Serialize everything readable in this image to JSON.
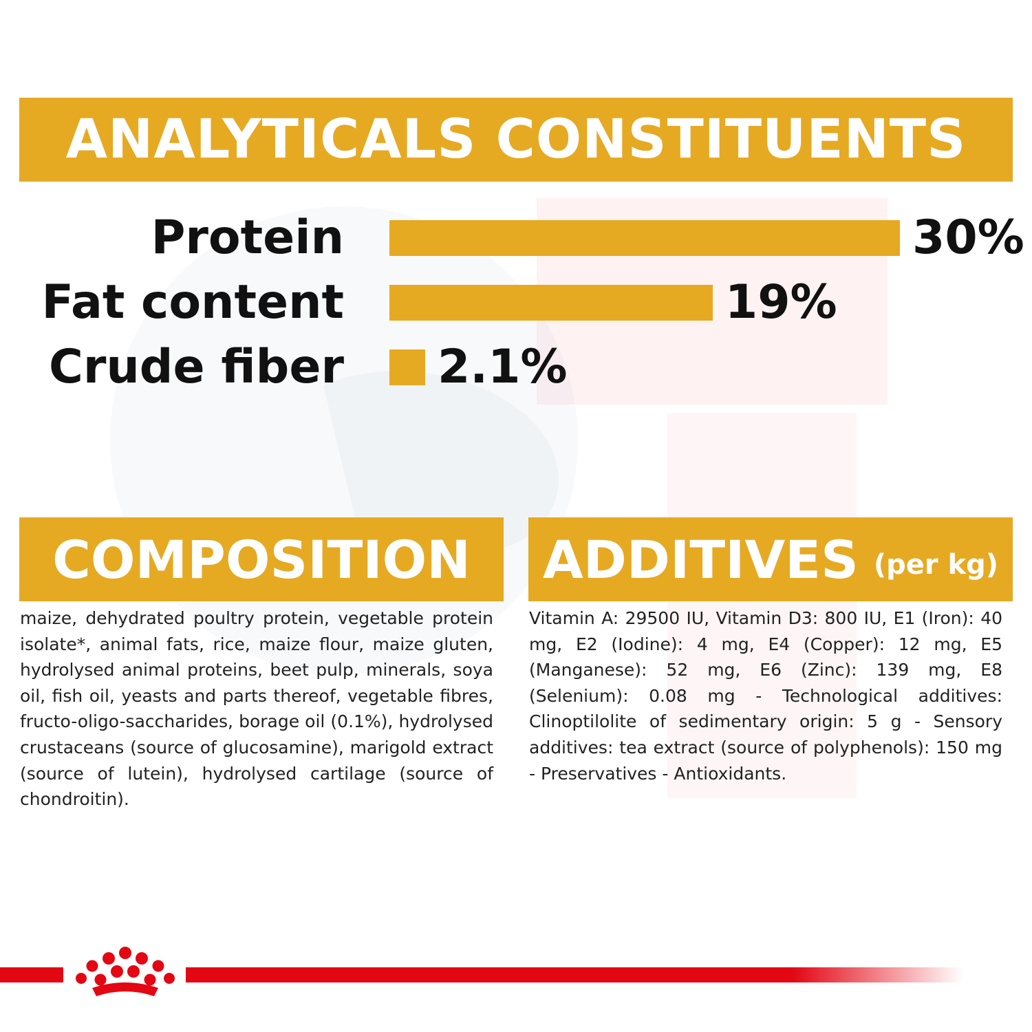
{
  "analytics": {
    "title": "ANALYTICALS CONSTITUENTS"
  },
  "chart_data": {
    "type": "bar",
    "orientation": "horizontal",
    "title": "ANALYTICALS CONSTITUENTS",
    "categories": [
      "Protein",
      "Fat content",
      "Crude fiber"
    ],
    "values": [
      30,
      19,
      2.1
    ],
    "value_labels": [
      "30%",
      "19%",
      "2.1%"
    ],
    "unit": "%",
    "xlim": [
      0,
      30
    ],
    "grid": false,
    "legend": "none",
    "bar_color": "#e6a922"
  },
  "composition": {
    "title": "COMPOSITION",
    "text": "maize, dehydrated poultry protein, vegetable protein isolate*, animal fats, rice, maize flour, maize gluten, hydrolysed animal proteins, beet pulp, minerals, soya oil, fish oil, yeasts and parts thereof, vegetable fibres, fructo-oligo-saccharides, borage oil (0.1%), hydrolysed crustaceans (source of glucosamine), marigold extract (source of lutein), hydrolysed cartilage (source of chondroitin)."
  },
  "additives": {
    "title": "ADDITIVES",
    "title_suffix": "(per kg)",
    "text": "Vitamin A: 29500 IU, Vitamin D3: 800 IU, E1 (Iron): 40 mg, E2 (Iodine): 4 mg, E4 (Copper): 12 mg, E5 (Manganese): 52 mg, E6 (Zinc): 139 mg, E8 (Selenium): 0.08 mg - Technological additives: Clinoptilolite of sedimentary origin: 5 g - Sensory additives: tea extract (source of polyphenols): 150 mg - Preservatives - Antioxidants."
  },
  "colors": {
    "accent": "#e6a922",
    "brand_red": "#e30613",
    "text_dark": "#111111"
  },
  "footer": {
    "logo_icon": "royal-canin-crown-icon"
  }
}
